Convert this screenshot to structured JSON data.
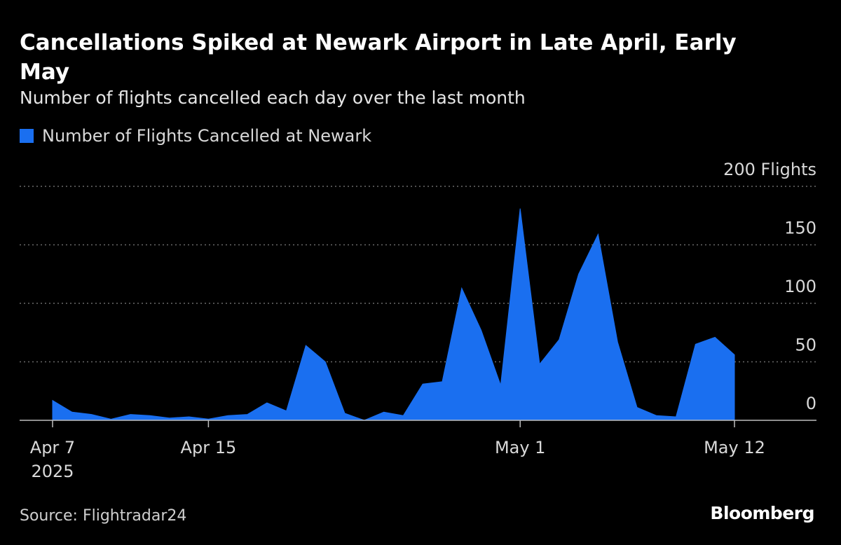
{
  "header": {
    "title": "Cancellations Spiked at Newark Airport in Late April, Early May",
    "subtitle": "Number of flights cancelled each day over the last month"
  },
  "footer": {
    "source": "Source: Flightradar24",
    "brand": "Bloomberg"
  },
  "colors": {
    "series": "#1a6ff0",
    "background": "#000000",
    "grid": "#6a6a6a",
    "axis_text": "#d9d9d9"
  },
  "chart_data": {
    "type": "area",
    "series": [
      {
        "name": "Number of Flights Cancelled at Newark",
        "x": [
          "2025-04-07",
          "2025-04-08",
          "2025-04-09",
          "2025-04-10",
          "2025-04-11",
          "2025-04-12",
          "2025-04-13",
          "2025-04-14",
          "2025-04-15",
          "2025-04-16",
          "2025-04-17",
          "2025-04-18",
          "2025-04-19",
          "2025-04-20",
          "2025-04-21",
          "2025-04-22",
          "2025-04-23",
          "2025-04-24",
          "2025-04-25",
          "2025-04-26",
          "2025-04-27",
          "2025-04-28",
          "2025-04-29",
          "2025-04-30",
          "2025-05-01",
          "2025-05-02",
          "2025-05-03",
          "2025-05-04",
          "2025-05-05",
          "2025-05-06",
          "2025-05-07",
          "2025-05-08",
          "2025-05-09",
          "2025-05-10",
          "2025-05-11",
          "2025-05-12"
        ],
        "values": [
          17,
          7,
          5,
          1,
          5,
          4,
          2,
          3,
          1,
          4,
          5,
          15,
          8,
          64,
          50,
          6,
          0,
          7,
          4,
          31,
          33,
          113,
          77,
          30,
          181,
          48,
          69,
          125,
          159,
          67,
          11,
          4,
          3,
          65,
          71,
          56
        ]
      }
    ],
    "y_ticks": [
      "200 Flights",
      "150",
      "100",
      "50",
      "0"
    ],
    "y_tick_values": [
      200,
      150,
      100,
      50,
      0
    ],
    "ylim": [
      0,
      200
    ],
    "x_ticks": [
      {
        "date": "2025-04-07",
        "label": "Apr 7",
        "sublabel": "2025"
      },
      {
        "date": "2025-04-15",
        "label": "Apr 15",
        "sublabel": ""
      },
      {
        "date": "2025-05-01",
        "label": "May 1",
        "sublabel": ""
      },
      {
        "date": "2025-05-12",
        "label": "May 12",
        "sublabel": ""
      }
    ],
    "xlim": [
      "2025-04-07",
      "2025-05-16"
    ],
    "grid": true,
    "legend_position": "top-left"
  }
}
